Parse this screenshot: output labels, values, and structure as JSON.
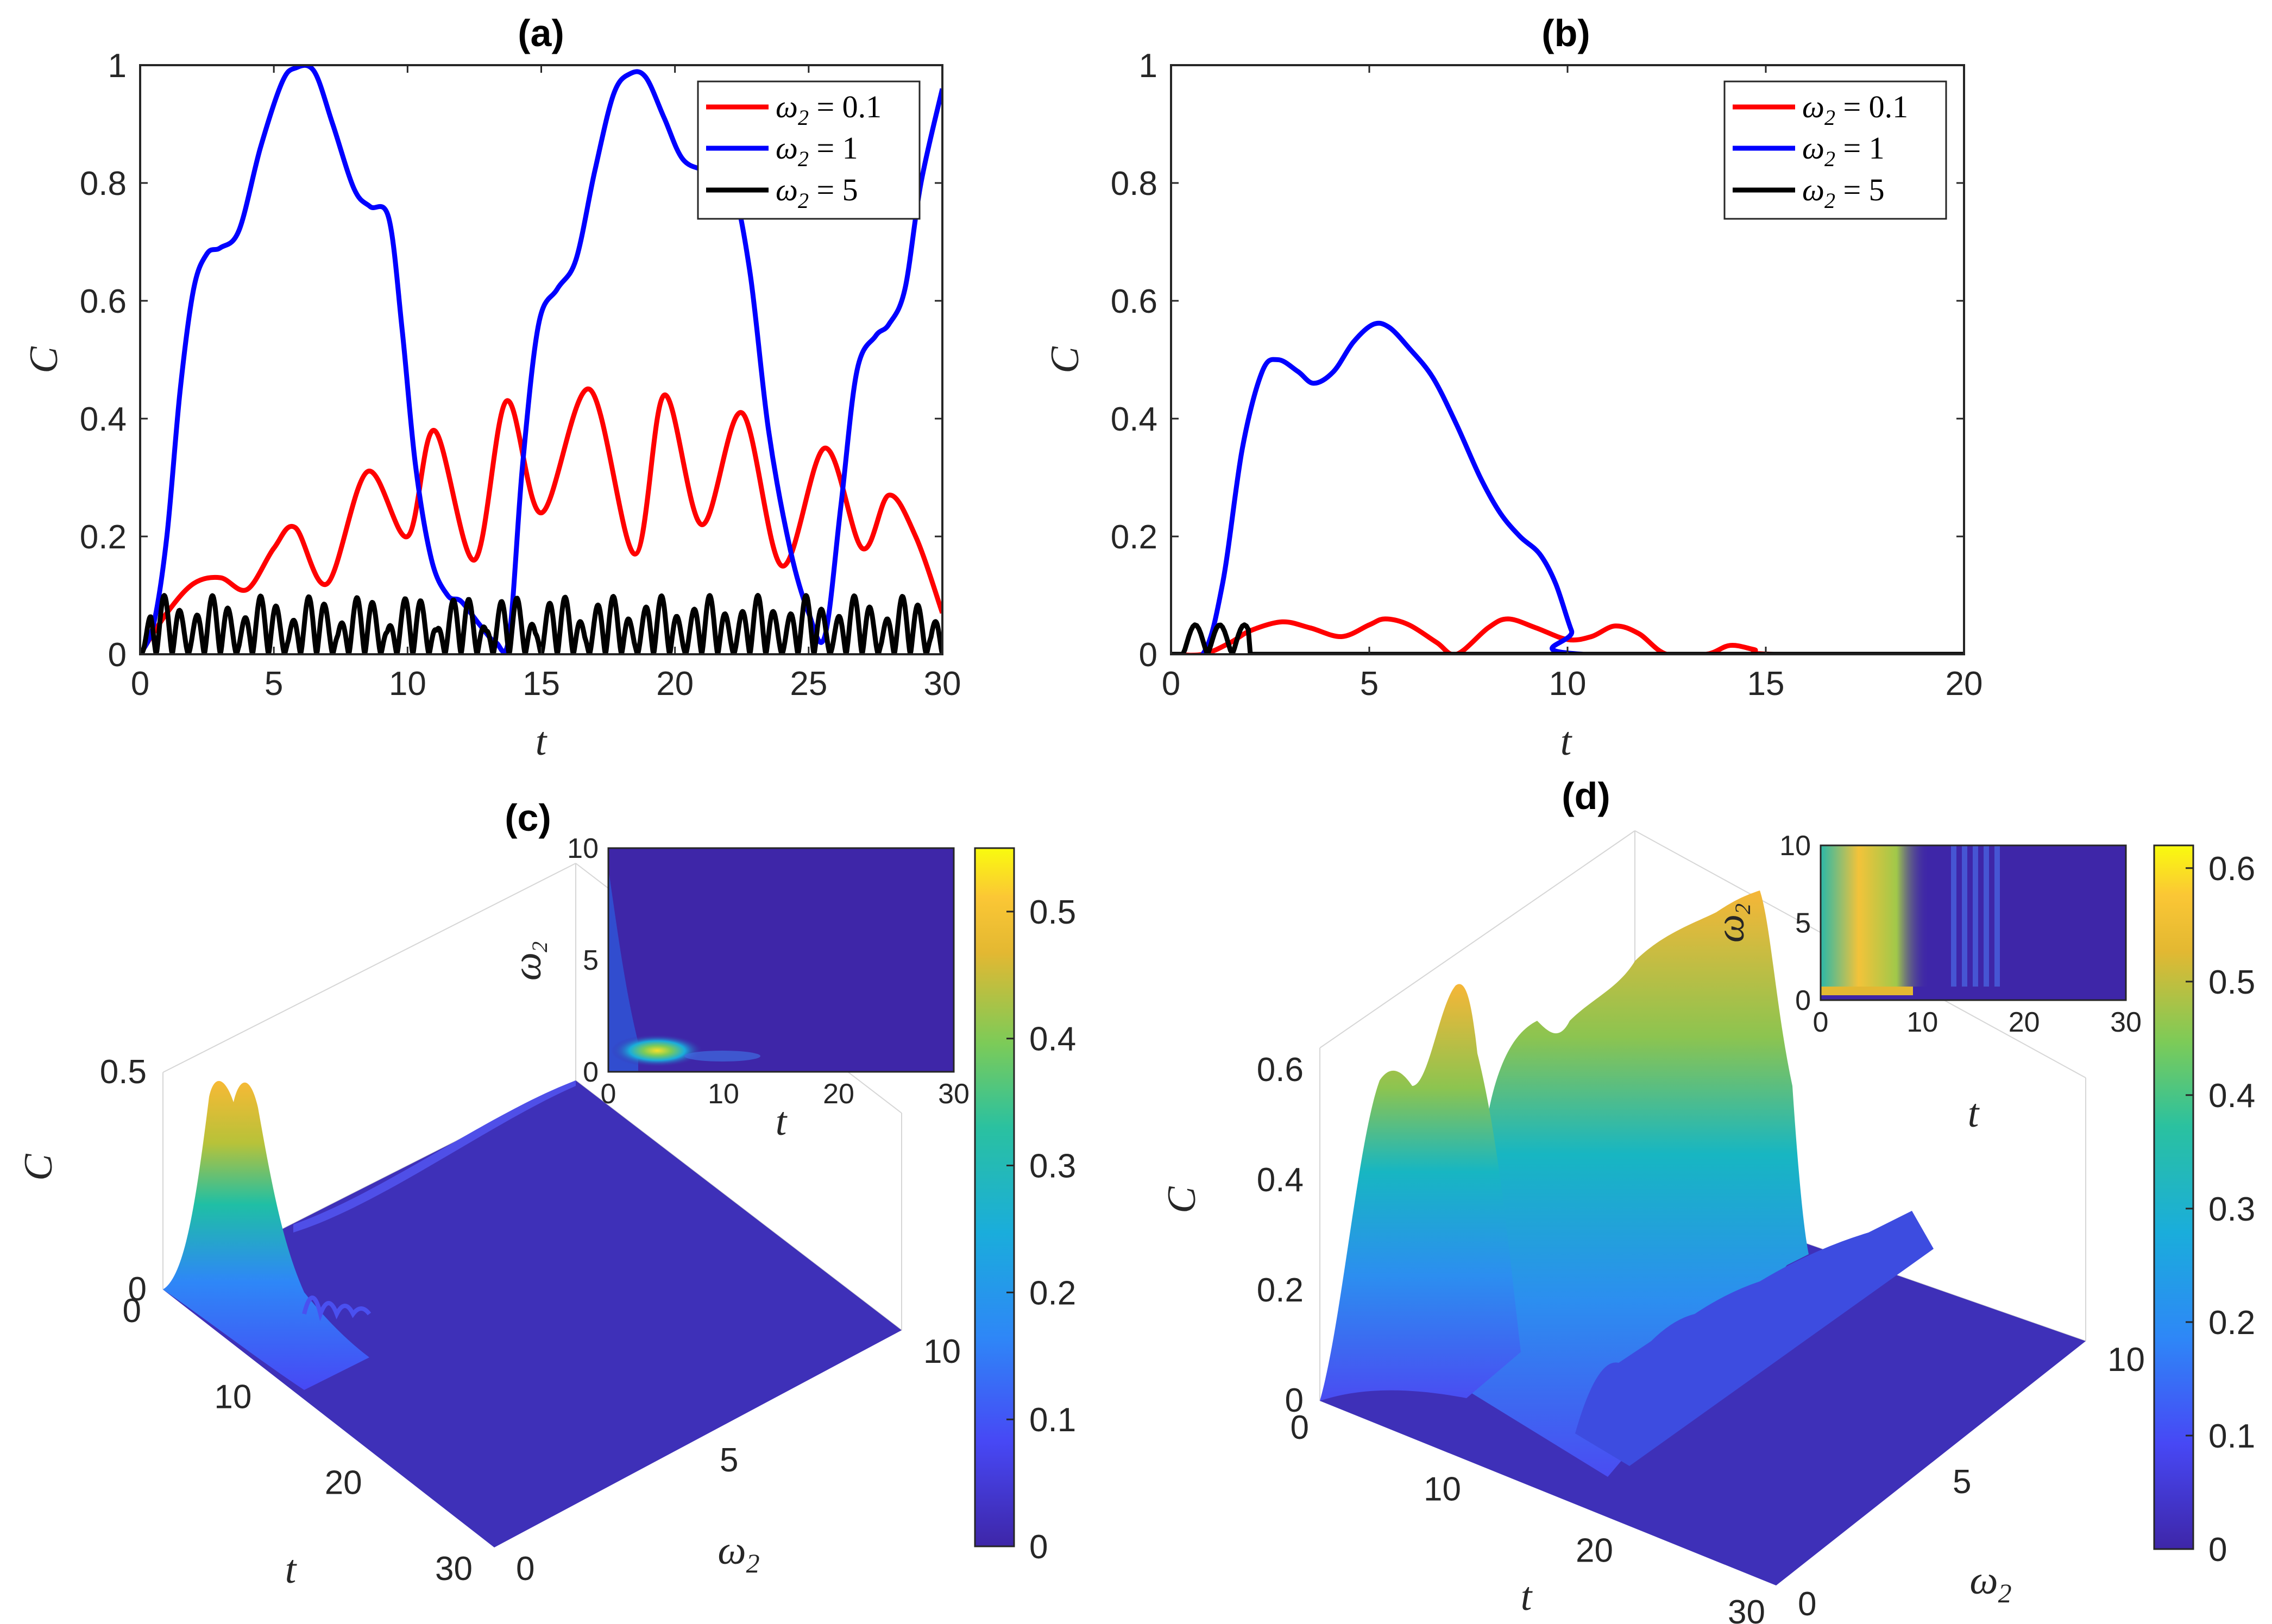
{
  "chart_data": [
    {
      "id": "a",
      "type": "line",
      "title": "(a)",
      "xlabel": "t",
      "ylabel": "C",
      "xlim": [
        0,
        30
      ],
      "ylim": [
        0,
        1
      ],
      "xticks": [
        "0",
        "5",
        "10",
        "15",
        "20",
        "25",
        "30"
      ],
      "yticks": [
        "0",
        "0.2",
        "0.4",
        "0.6",
        "0.8",
        "1"
      ],
      "legend_position": "top-right",
      "series": [
        {
          "name": "ω2 = 0.1",
          "legend_base": "ω",
          "legend_sub": "2",
          "legend_rest": " = 0.1",
          "color": "#ff0000",
          "x": [
            0,
            1,
            2,
            3,
            4,
            5,
            5.8,
            7,
            8.5,
            10,
            11,
            12.5,
            13.7,
            15,
            16.8,
            18.5,
            19.6,
            21,
            22.5,
            24,
            25.6,
            27,
            28,
            29,
            30
          ],
          "y": [
            0,
            0.07,
            0.12,
            0.13,
            0.11,
            0.18,
            0.215,
            0.12,
            0.31,
            0.2,
            0.38,
            0.16,
            0.43,
            0.24,
            0.45,
            0.17,
            0.44,
            0.22,
            0.41,
            0.15,
            0.35,
            0.18,
            0.27,
            0.2,
            0.07
          ]
        },
        {
          "name": "ω2 = 1",
          "legend_base": "ω",
          "legend_sub": "2",
          "legend_rest": " = 1",
          "color": "#0000ff",
          "x": [
            0,
            0.5,
            1,
            1.5,
            2,
            2.5,
            3,
            3.7,
            4.5,
            5.3,
            5.8,
            6.5,
            7.2,
            8,
            8.6,
            9.3,
            9.8,
            10.3,
            10.9,
            11.5,
            12,
            12.7,
            13.3,
            13.8,
            14.3,
            14.9,
            15.6,
            16.3,
            17,
            17.7,
            18.3,
            18.9,
            19.6,
            20.3,
            21.2,
            22.1,
            22.8,
            23.5,
            24.3,
            25,
            25.6,
            26.2,
            26.8,
            27.5,
            28,
            28.6,
            29.2,
            30
          ],
          "y": [
            0,
            0.05,
            0.2,
            0.45,
            0.62,
            0.68,
            0.69,
            0.72,
            0.86,
            0.97,
            0.995,
            0.99,
            0.9,
            0.79,
            0.76,
            0.74,
            0.55,
            0.32,
            0.16,
            0.1,
            0.09,
            0.05,
            0.02,
            0.03,
            0.32,
            0.56,
            0.62,
            0.67,
            0.82,
            0.95,
            0.985,
            0.98,
            0.91,
            0.84,
            0.82,
            0.8,
            0.65,
            0.38,
            0.18,
            0.07,
            0.03,
            0.25,
            0.48,
            0.54,
            0.56,
            0.62,
            0.8,
            0.96
          ]
        },
        {
          "name": "ω2 = 5",
          "legend_base": "ω",
          "legend_sub": "2",
          "legend_rest": " = 5",
          "color": "#000000",
          "model": "oscillation",
          "period": 0.6,
          "amplitude": [
            0.04,
            0.1
          ]
        }
      ]
    },
    {
      "id": "b",
      "type": "line",
      "title": "(b)",
      "xlabel": "t",
      "ylabel": "C",
      "xlim": [
        0,
        20
      ],
      "ylim": [
        0,
        1
      ],
      "xticks": [
        "0",
        "5",
        "10",
        "15",
        "20"
      ],
      "yticks": [
        "0",
        "0.2",
        "0.4",
        "0.6",
        "0.8",
        "1"
      ],
      "legend_position": "top-right",
      "series": [
        {
          "name": "ω2 = 0.1",
          "legend_base": "ω",
          "legend_sub": "2",
          "legend_rest": " = 0.1",
          "color": "#ff0000",
          "x": [
            0,
            0.8,
            1.5,
            2,
            2.8,
            3.5,
            4.3,
            5,
            5.4,
            6,
            6.7,
            7.2,
            8,
            8.5,
            9.2,
            10,
            10.6,
            11.2,
            11.8,
            12.5,
            13.5,
            14.1,
            14.7,
            15.2,
            20
          ],
          "y": [
            0,
            0,
            0.02,
            0.04,
            0.055,
            0.045,
            0.03,
            0.05,
            0.06,
            0.05,
            0.02,
            0,
            0.045,
            0.06,
            0.045,
            0.025,
            0.03,
            0.048,
            0.035,
            0,
            0,
            0.015,
            0.008,
            0,
            0
          ]
        },
        {
          "name": "ω2 = 1",
          "legend_base": "ω",
          "legend_sub": "2",
          "legend_rest": " = 1",
          "color": "#0000ff",
          "x": [
            0,
            0.8,
            1.3,
            1.8,
            2.3,
            2.7,
            3.2,
            3.6,
            4.1,
            4.6,
            5.1,
            5.5,
            6,
            6.6,
            7.2,
            7.8,
            8.3,
            8.8,
            9.3,
            9.7,
            10.1,
            10.4,
            20
          ],
          "y": [
            0,
            0,
            0.12,
            0.35,
            0.48,
            0.5,
            0.48,
            0.46,
            0.48,
            0.53,
            0.56,
            0.555,
            0.52,
            0.47,
            0.39,
            0.3,
            0.24,
            0.2,
            0.17,
            0.12,
            0.04,
            0,
            0
          ]
        },
        {
          "name": "ω2 = 5",
          "legend_base": "ω",
          "legend_sub": "2",
          "legend_rest": " = 5",
          "color": "#000000",
          "model": "decaying_oscillation",
          "period": 0.62,
          "cutoff": 2.0
        }
      ]
    },
    {
      "id": "c",
      "type": "heatmap",
      "title": "(c)",
      "xlabel": "ω2",
      "xlabel_base": "ω",
      "xlabel_sub": "2",
      "ylabel": "t",
      "zlabel": "C",
      "zticks": [
        "0",
        "0.5"
      ],
      "xticks": [
        "0",
        "5",
        "10"
      ],
      "yticks": [
        "0",
        "10",
        "20",
        "30"
      ],
      "colorbar": {
        "range": [
          0,
          0.55
        ],
        "ticks": [
          "0",
          "0.1",
          "0.2",
          "0.3",
          "0.4",
          "0.5"
        ],
        "values": [
          0,
          0.1,
          0.2,
          0.3,
          0.4,
          0.5
        ]
      },
      "inset": {
        "xlabel": "t",
        "ylabel": "ω2",
        "ylabel_base": "ω",
        "ylabel_sub": "2",
        "xticks": [
          "0",
          "10",
          "20",
          "30"
        ],
        "yticks": [
          "0",
          "5",
          "10"
        ]
      }
    },
    {
      "id": "d",
      "type": "heatmap",
      "title": "(d)",
      "xlabel": "ω2",
      "xlabel_base": "ω",
      "xlabel_sub": "2",
      "ylabel": "t",
      "zlabel": "C",
      "zticks": [
        "0",
        "0.2",
        "0.4",
        "0.6"
      ],
      "xticks": [
        "0",
        "5",
        "10"
      ],
      "yticks": [
        "0",
        "10",
        "20",
        "30"
      ],
      "colorbar": {
        "range": [
          0,
          0.62
        ],
        "ticks": [
          "0",
          "0.1",
          "0.2",
          "0.3",
          "0.4",
          "0.5",
          "0.6"
        ],
        "values": [
          0,
          0.1,
          0.2,
          0.3,
          0.4,
          0.5,
          0.6
        ]
      },
      "inset": {
        "xlabel": "t",
        "ylabel": "ω2",
        "ylabel_base": "ω",
        "ylabel_sub": "2",
        "xticks": [
          "0",
          "10",
          "20",
          "30"
        ],
        "yticks": [
          "0",
          "5",
          "10"
        ]
      }
    }
  ]
}
